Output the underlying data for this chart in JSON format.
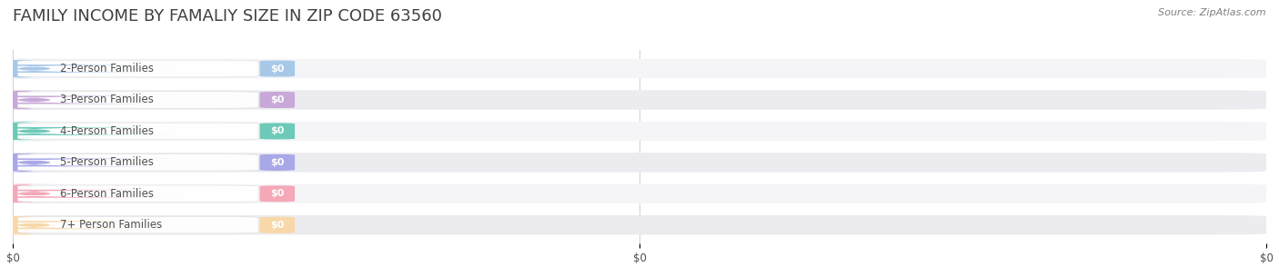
{
  "title": "FAMILY INCOME BY FAMALIY SIZE IN ZIP CODE 63560",
  "source": "Source: ZipAtlas.com",
  "categories": [
    "2-Person Families",
    "3-Person Families",
    "4-Person Families",
    "5-Person Families",
    "6-Person Families",
    "7+ Person Families"
  ],
  "values": [
    0,
    0,
    0,
    0,
    0,
    0
  ],
  "bar_colors": [
    "#a8c8e8",
    "#c8a8d8",
    "#6dcab8",
    "#a8a8e8",
    "#f4a8b8",
    "#f8d8a8"
  ],
  "icon_colors": [
    "#a8c8e8",
    "#c8a8d8",
    "#6dcab8",
    "#a8a8e8",
    "#f4a8b8",
    "#f8d8a8"
  ],
  "bar_bg_color": "#f0f0f5",
  "background_color": "#ffffff",
  "title_fontsize": 13,
  "label_fontsize": 9,
  "value_label": "$0",
  "xlim": [
    0,
    1
  ],
  "x_ticks": [
    0,
    0.5,
    1.0
  ],
  "x_tick_labels": [
    "$0",
    "$0",
    "$0"
  ],
  "title_color": "#404040",
  "source_color": "#808080",
  "label_text_color": "#505050",
  "value_text_color": "#ffffff"
}
